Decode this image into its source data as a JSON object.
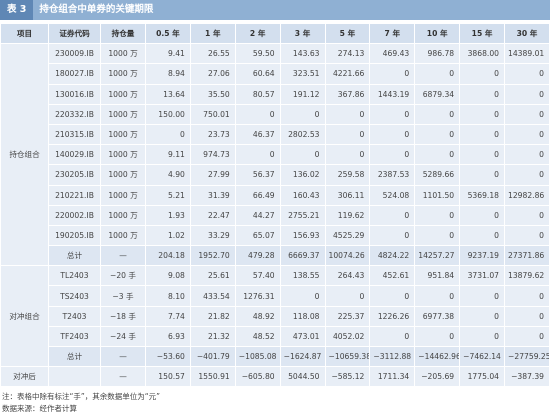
{
  "title": {
    "tag": "表 3",
    "text": "持仓组合中单券的关键期限"
  },
  "table": {
    "header": [
      "项目",
      "证券代码",
      "持仓量",
      "0.5 年",
      "1 年",
      "2 年",
      "3 年",
      "5 年",
      "7 年",
      "10 年",
      "15 年",
      "30 年"
    ],
    "sections": [
      {
        "name": "持仓组合",
        "rows": [
          {
            "code": "230009.IB",
            "qty": "1000 万",
            "values": [
              "9.41",
              "26.55",
              "59.50",
              "143.63",
              "274.13",
              "469.43",
              "986.78",
              "3868.00",
              "14389.01"
            ]
          },
          {
            "code": "180027.IB",
            "qty": "1000 万",
            "values": [
              "8.94",
              "27.06",
              "60.64",
              "323.51",
              "4221.66",
              "0",
              "0",
              "0",
              "0"
            ]
          },
          {
            "code": "130016.IB",
            "qty": "1000 万",
            "values": [
              "13.64",
              "35.50",
              "80.57",
              "191.12",
              "367.86",
              "1443.19",
              "6879.34",
              "0",
              "0"
            ]
          },
          {
            "code": "220332.IB",
            "qty": "1000 万",
            "values": [
              "150.00",
              "750.01",
              "0",
              "0",
              "0",
              "0",
              "0",
              "0",
              "0"
            ]
          },
          {
            "code": "210315.IB",
            "qty": "1000 万",
            "values": [
              "0",
              "23.73",
              "46.37",
              "2802.53",
              "0",
              "0",
              "0",
              "0",
              "0"
            ]
          },
          {
            "code": "140029.IB",
            "qty": "1000 万",
            "values": [
              "9.11",
              "974.73",
              "0",
              "0",
              "0",
              "0",
              "0",
              "0",
              "0"
            ]
          },
          {
            "code": "230205.IB",
            "qty": "1000 万",
            "values": [
              "4.90",
              "27.99",
              "56.37",
              "136.02",
              "259.58",
              "2387.53",
              "5289.66",
              "0",
              "0"
            ]
          },
          {
            "code": "210221.IB",
            "qty": "1000 万",
            "values": [
              "5.21",
              "31.39",
              "66.49",
              "160.43",
              "306.11",
              "524.08",
              "1101.50",
              "5369.18",
              "12982.86"
            ]
          },
          {
            "code": "220002.IB",
            "qty": "1000 万",
            "values": [
              "1.93",
              "22.47",
              "44.27",
              "2755.21",
              "119.62",
              "0",
              "0",
              "0",
              "0"
            ]
          },
          {
            "code": "190205.IB",
            "qty": "1000 万",
            "values": [
              "1.02",
              "33.29",
              "65.07",
              "156.93",
              "4525.29",
              "0",
              "0",
              "0",
              "0"
            ]
          },
          {
            "code": "总计",
            "qty": "—",
            "values": [
              "204.18",
              "1952.70",
              "479.28",
              "6669.37",
              "10074.26",
              "4824.22",
              "14257.27",
              "9237.19",
              "27371.86"
            ]
          }
        ]
      },
      {
        "name": "对冲组合",
        "rows": [
          {
            "code": "TL2403",
            "qty": "−20 手",
            "values": [
              "9.08",
              "25.61",
              "57.40",
              "138.55",
              "264.43",
              "452.61",
              "951.84",
              "3731.07",
              "13879.62"
            ]
          },
          {
            "code": "TS2403",
            "qty": "−3 手",
            "values": [
              "8.10",
              "433.54",
              "1276.31",
              "0",
              "0",
              "0",
              "0",
              "0",
              "0"
            ]
          },
          {
            "code": "T2403",
            "qty": "−18 手",
            "values": [
              "7.74",
              "21.82",
              "48.92",
              "118.08",
              "225.37",
              "1226.26",
              "6977.38",
              "0",
              "0"
            ]
          },
          {
            "code": "TF2403",
            "qty": "−24 手",
            "values": [
              "6.93",
              "21.32",
              "48.52",
              "473.01",
              "4052.02",
              "0",
              "0",
              "0",
              "0"
            ]
          },
          {
            "code": "总计",
            "qty": "—",
            "values": [
              "−53.60",
              "−401.79",
              "−1085.08",
              "−1624.87",
              "−10659.38",
              "−3112.88",
              "−14462.96",
              "−7462.14",
              "−27759.25"
            ]
          }
        ]
      },
      {
        "name": "对冲后",
        "rows": [
          {
            "qty": "—",
            "values": [
              "150.57",
              "1550.91",
              "−605.80",
              "5044.50",
              "−585.12",
              "1711.34",
              "−205.69",
              "1775.04",
              "−387.39"
            ]
          }
        ]
      }
    ]
  },
  "notes": [
    "注：表格中除有标注“手”，其余数据单位为“元”",
    "数据来源：经作者计算"
  ]
}
